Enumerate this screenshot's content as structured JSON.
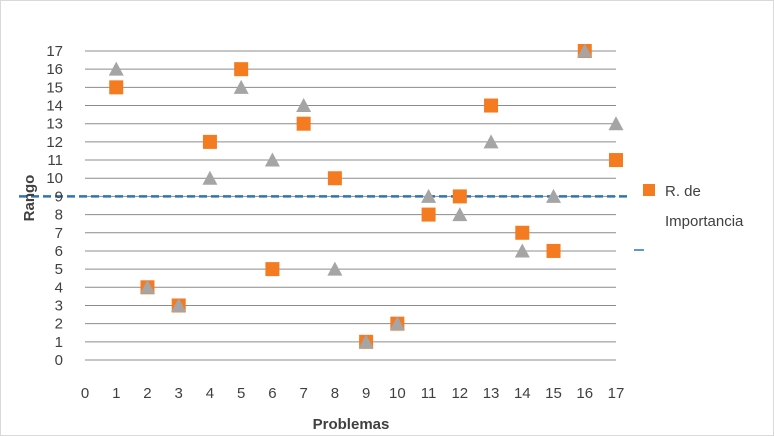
{
  "chart_data": {
    "type": "scatter",
    "xlabel": "Problemas",
    "ylabel": "Rango",
    "xlim": [
      0,
      17
    ],
    "ylim": [
      0,
      17
    ],
    "x_ticks": [
      0,
      1,
      2,
      3,
      4,
      5,
      6,
      7,
      8,
      9,
      10,
      11,
      12,
      13,
      14,
      15,
      16,
      17
    ],
    "y_ticks": [
      0,
      1,
      2,
      3,
      4,
      5,
      6,
      7,
      8,
      9,
      10,
      11,
      12,
      13,
      14,
      15,
      16,
      17
    ],
    "grid": "horizontal",
    "legend_position": "right",
    "series": [
      {
        "name": "R. de Importancia",
        "marker": "square",
        "color": "#F47B20",
        "x": [
          1,
          2,
          3,
          4,
          5,
          6,
          7,
          8,
          9,
          10,
          11,
          12,
          13,
          14,
          15,
          16,
          17
        ],
        "y": [
          15,
          4,
          3,
          12,
          16,
          5,
          13,
          10,
          1,
          2,
          8,
          9,
          14,
          7,
          6,
          17,
          11
        ]
      },
      {
        "marker": "triangle",
        "color": "#A5A5A5",
        "x": [
          1,
          2,
          3,
          4,
          5,
          6,
          7,
          8,
          9,
          10,
          11,
          12,
          13,
          14,
          15,
          16,
          17
        ],
        "y": [
          16,
          4,
          3,
          10,
          15,
          11,
          14,
          5,
          1,
          2,
          9,
          8,
          12,
          6,
          9,
          17,
          13
        ]
      },
      {
        "type": "reference-line",
        "style": "dashed",
        "color": "#2E75B6",
        "y": 9
      }
    ]
  }
}
